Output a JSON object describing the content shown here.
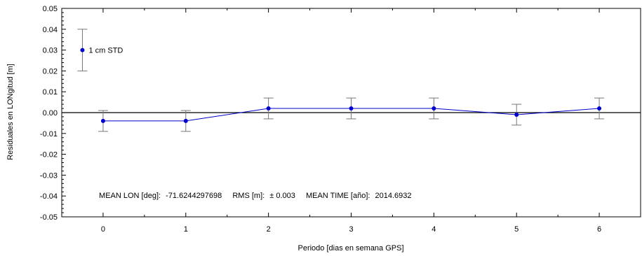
{
  "chart_data": {
    "type": "scatter",
    "xlabel": "Periodo [dias en semana GPS]",
    "ylabel": "Residuales en LONgitud [m]",
    "xlim": [
      -0.5,
      6.5
    ],
    "ylim": [
      -0.05,
      0.05
    ],
    "xticks": [
      0,
      1,
      2,
      3,
      4,
      5,
      6
    ],
    "yticks": [
      0.05,
      0.04,
      0.03,
      0.02,
      0.01,
      0.0,
      -0.01,
      -0.02,
      -0.03,
      -0.04,
      -0.05
    ],
    "ytick_labels": [
      "0.05",
      "0.04",
      "0.03",
      "0.02",
      "0.01",
      "0.00",
      "-0.01",
      "-0.02",
      "-0.03",
      "-0.04",
      "-0.05"
    ],
    "zero_line": true,
    "grid": false,
    "series": [
      {
        "x": [
          0,
          1,
          2,
          3,
          4,
          5,
          6
        ],
        "y": [
          -0.004,
          -0.004,
          0.002,
          0.002,
          0.002,
          -0.001,
          0.002
        ],
        "error": [
          0.005,
          0.005,
          0.005,
          0.005,
          0.005,
          0.005,
          0.005
        ],
        "color": "#0000cc",
        "errorbar_color": "#777777",
        "connected": true
      }
    ],
    "legend": {
      "label": "1 cm STD",
      "x": -0.25,
      "y": 0.03,
      "error": 0.01
    },
    "annotation": {
      "mean_lon_label": "MEAN LON [deg]:",
      "mean_lon_value": "-71.6244297698",
      "rms_label": "RMS [m]:",
      "rms_value": "± 0.003",
      "mean_time_label": "MEAN TIME [año]:",
      "mean_time_value": "2014.6932",
      "x": -0.05,
      "y": -0.041
    }
  }
}
